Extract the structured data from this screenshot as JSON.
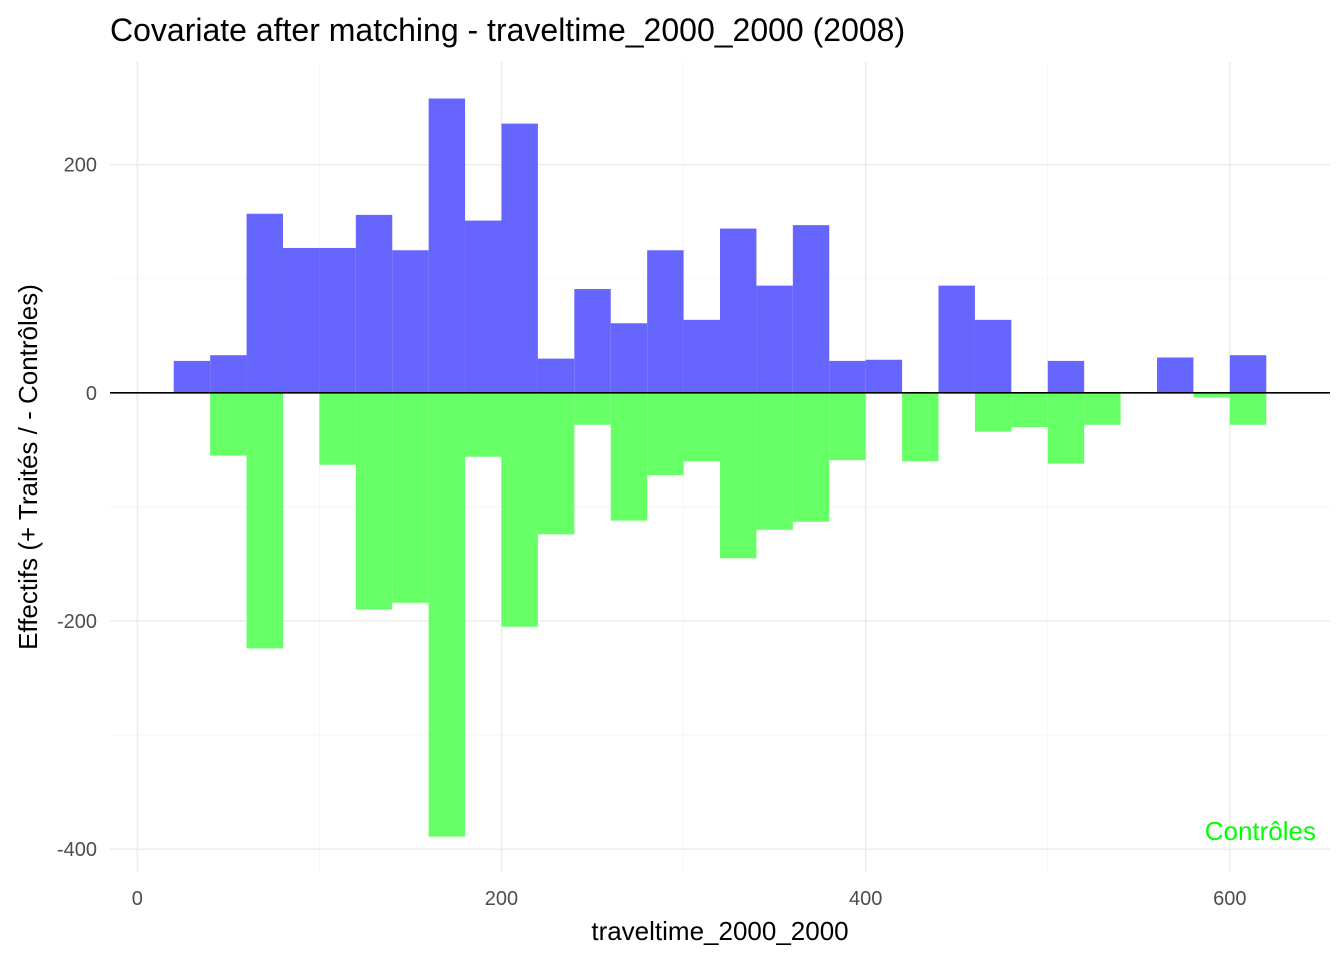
{
  "chart_data": {
    "type": "bar",
    "title": "Covariate after matching - traveltime_2000_2000 (2008)",
    "xlabel": "traveltime_2000_2000",
    "ylabel": "Effectifs (+ Traités / - Contrôles)",
    "xlim": [
      -15,
      655
    ],
    "ylim": [
      -420,
      290
    ],
    "x_ticks": [
      0,
      200,
      400,
      600
    ],
    "y_ticks": [
      -400,
      -200,
      0,
      200
    ],
    "x_tick_labels": [
      "0",
      "200",
      "400",
      "600"
    ],
    "y_tick_labels": [
      "-400",
      "-200",
      "0",
      "200"
    ],
    "grid": true,
    "bin_width": 20,
    "bin_centers": [
      30,
      50,
      70,
      90,
      110,
      130,
      150,
      170,
      190,
      210,
      230,
      250,
      270,
      290,
      310,
      330,
      350,
      370,
      390,
      410,
      430,
      450,
      470,
      490,
      510,
      530,
      550,
      570,
      590,
      610
    ],
    "series": [
      {
        "color": "#6666ff",
        "values": [
          28,
          33,
          157,
          127,
          127,
          156,
          125,
          258,
          151,
          236,
          30,
          91,
          61,
          125,
          64,
          144,
          94,
          147,
          28,
          29,
          0,
          94,
          64,
          0,
          28,
          0,
          0,
          31,
          0,
          33
        ]
      },
      {
        "color": "#66ff66",
        "values": [
          0,
          -55,
          -224,
          0,
          -63,
          -190,
          -184,
          -389,
          -56,
          -205,
          -124,
          -28,
          -112,
          -72,
          -60,
          -145,
          -120,
          -113,
          -59,
          0,
          -60,
          0,
          -34,
          -30,
          -62,
          -28,
          0,
          0,
          -4,
          -28
        ]
      }
    ],
    "annotation": {
      "text": "Contrôles",
      "color": "#00ff00",
      "position": "bottom-right"
    }
  }
}
